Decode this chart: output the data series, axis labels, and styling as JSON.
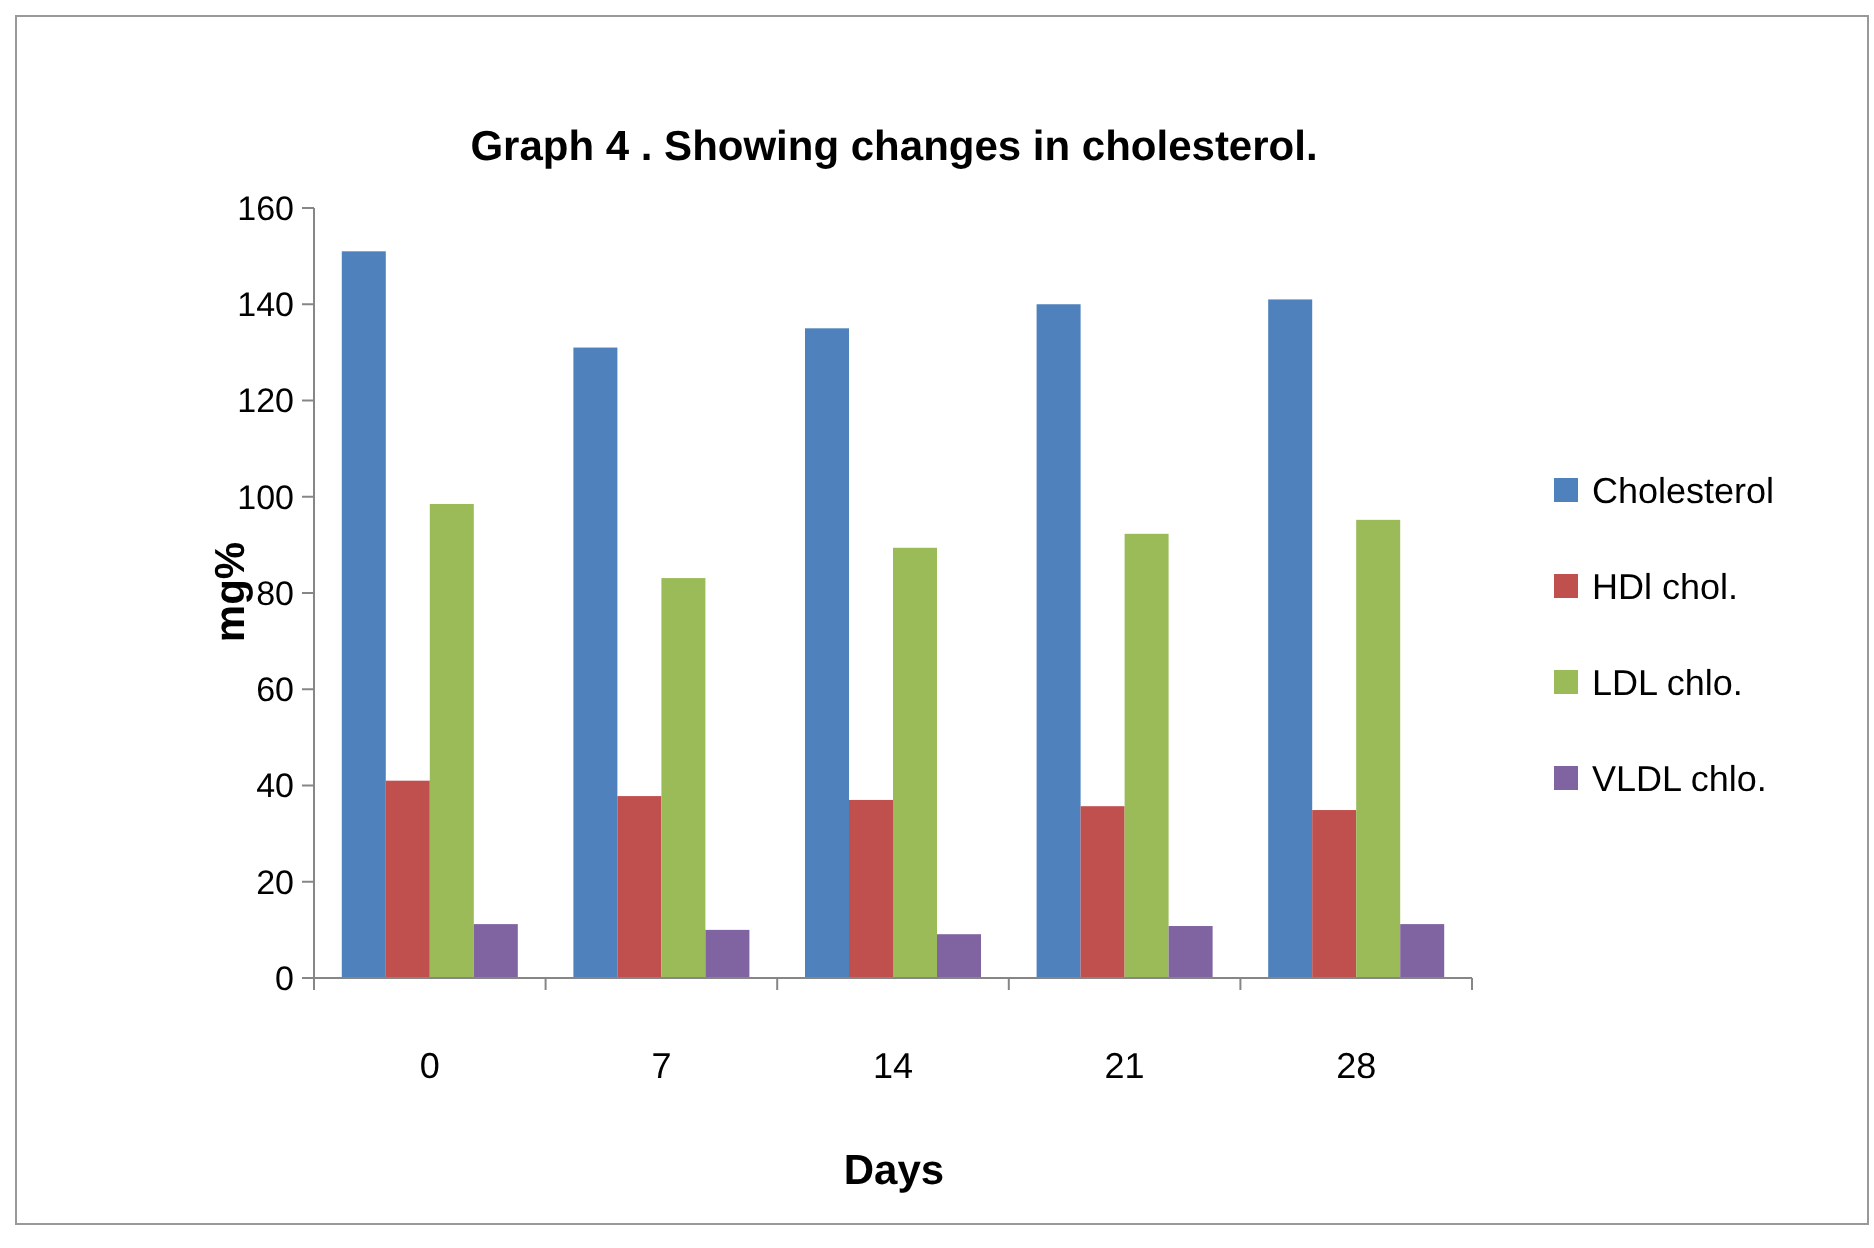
{
  "chart_data": {
    "type": "bar",
    "title": "Graph 4 . Showing changes in cholesterol.",
    "xlabel": "Days",
    "ylabel": "mg%",
    "categories": [
      "0",
      "7",
      "14",
      "21",
      "28"
    ],
    "series": [
      {
        "name": "Cholesterol",
        "color": "#4f81bd",
        "values": [
          151,
          131,
          135,
          140,
          141
        ]
      },
      {
        "name": "HDl chol.",
        "color": "#c0504d",
        "values": [
          41,
          37.8,
          37,
          35.7,
          34.9
        ]
      },
      {
        "name": "LDL chlo.",
        "color": "#9bbb59",
        "values": [
          98.5,
          83.1,
          89.4,
          92.3,
          95.2
        ]
      },
      {
        "name": "VLDL chlo.",
        "color": "#8064a2",
        "values": [
          11.2,
          10,
          9.1,
          10.8,
          11.2
        ]
      }
    ],
    "ylim": [
      0,
      160
    ],
    "yticks": [
      0,
      20,
      40,
      60,
      80,
      100,
      120,
      140,
      160
    ],
    "grid": false,
    "legend": "right"
  }
}
